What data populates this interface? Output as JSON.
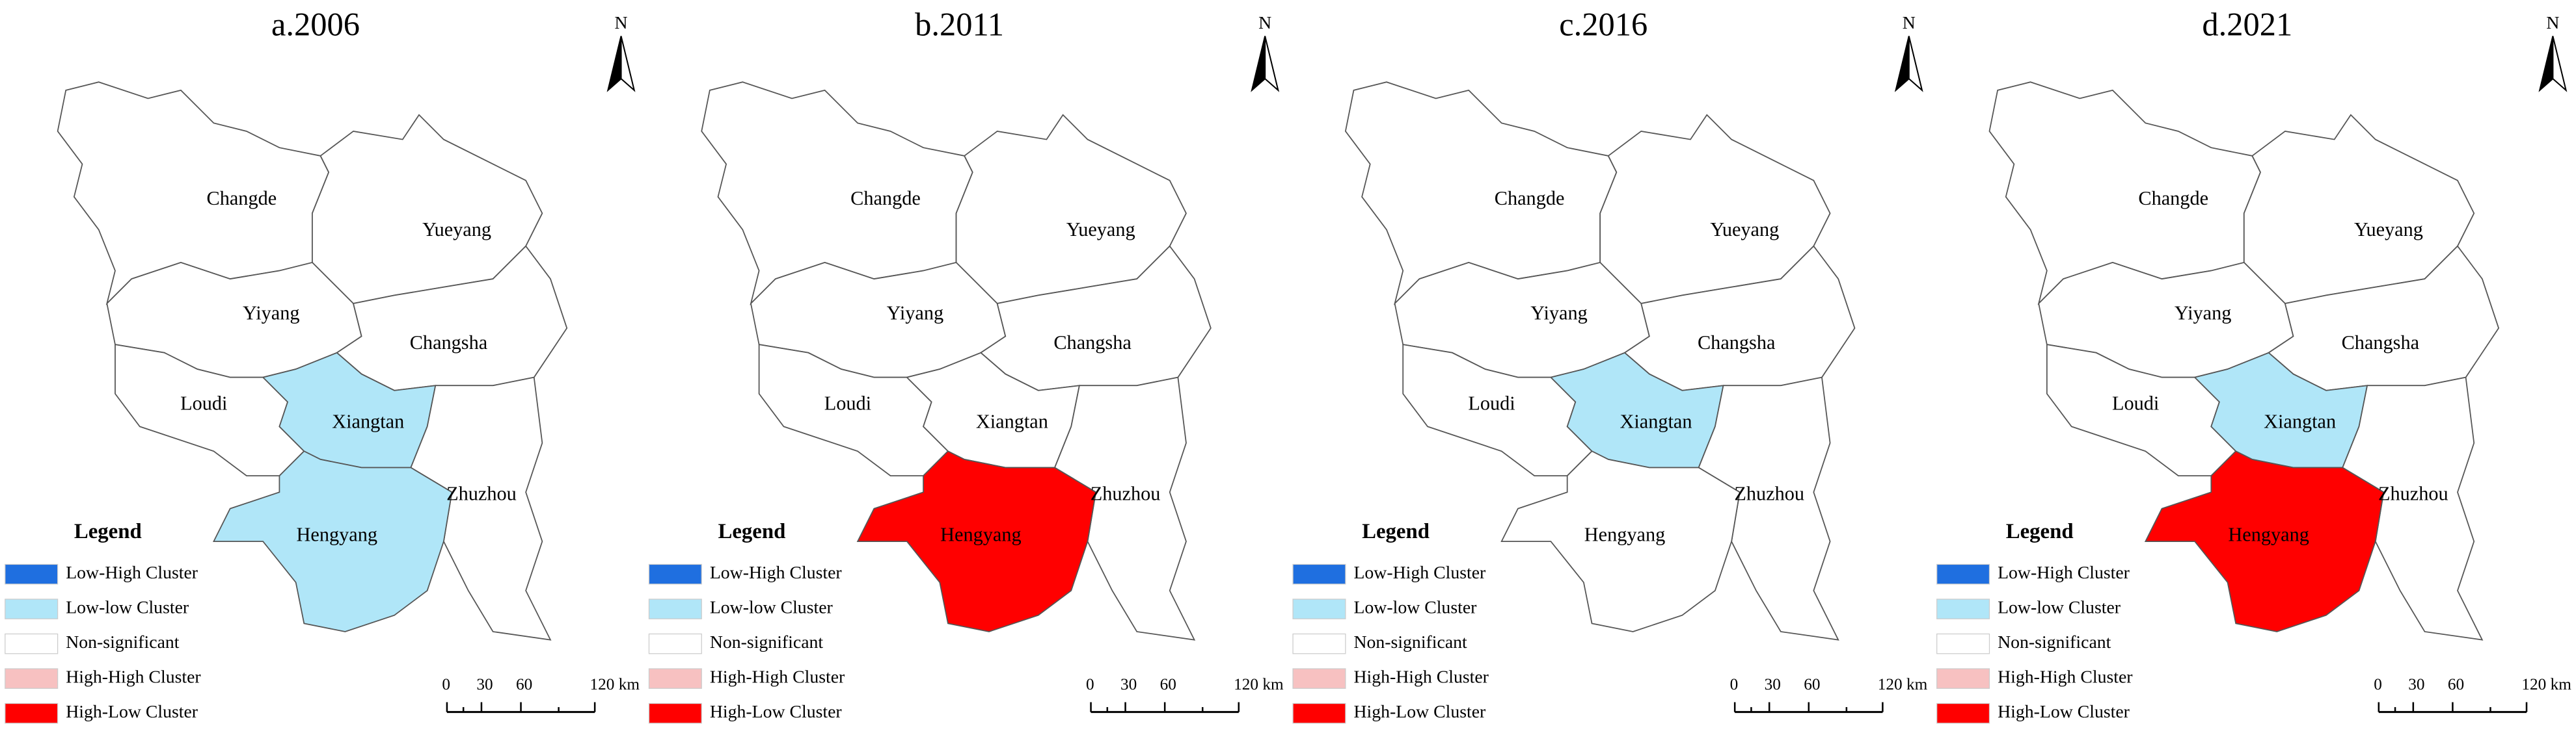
{
  "north": "N",
  "legend": {
    "title": "Legend",
    "items": [
      {
        "label": "Low-High Cluster",
        "color": "#1f6fe0"
      },
      {
        "label": "Low-low Cluster",
        "color": "#b0e6f8"
      },
      {
        "label": "Non-significant",
        "color": "#ffffff"
      },
      {
        "label": "High-High Cluster",
        "color": "#f7c1c1"
      },
      {
        "label": "High-Low Cluster",
        "color": "#ff0000"
      }
    ]
  },
  "scale_bar": [
    "0",
    "30",
    "60",
    "120 km"
  ],
  "panels": [
    {
      "title": "a.2006",
      "regions": [
        {
          "name": "Changde",
          "color": "#ffffff"
        },
        {
          "name": "Yueyang",
          "color": "#ffffff"
        },
        {
          "name": "Yiyang",
          "color": "#ffffff"
        },
        {
          "name": "Changsha",
          "color": "#ffffff"
        },
        {
          "name": "Loudi",
          "color": "#ffffff"
        },
        {
          "name": "Xiangtan",
          "color": "#b0e6f8"
        },
        {
          "name": "Zhuzhou",
          "color": "#ffffff"
        },
        {
          "name": "Hengyang",
          "color": "#b0e6f8"
        }
      ]
    },
    {
      "title": "b.2011",
      "regions": [
        {
          "name": "Changde",
          "color": "#ffffff"
        },
        {
          "name": "Yueyang",
          "color": "#ffffff"
        },
        {
          "name": "Yiyang",
          "color": "#ffffff"
        },
        {
          "name": "Changsha",
          "color": "#ffffff"
        },
        {
          "name": "Loudi",
          "color": "#ffffff"
        },
        {
          "name": "Xiangtan",
          "color": "#ffffff"
        },
        {
          "name": "Zhuzhou",
          "color": "#ffffff"
        },
        {
          "name": "Hengyang",
          "color": "#ff0000"
        }
      ]
    },
    {
      "title": "c.2016",
      "regions": [
        {
          "name": "Changde",
          "color": "#ffffff"
        },
        {
          "name": "Yueyang",
          "color": "#ffffff"
        },
        {
          "name": "Yiyang",
          "color": "#ffffff"
        },
        {
          "name": "Changsha",
          "color": "#ffffff"
        },
        {
          "name": "Loudi",
          "color": "#ffffff"
        },
        {
          "name": "Xiangtan",
          "color": "#b0e6f8"
        },
        {
          "name": "Zhuzhou",
          "color": "#ffffff"
        },
        {
          "name": "Hengyang",
          "color": "#ffffff"
        }
      ]
    },
    {
      "title": "d.2021",
      "regions": [
        {
          "name": "Changde",
          "color": "#ffffff"
        },
        {
          "name": "Yueyang",
          "color": "#ffffff"
        },
        {
          "name": "Yiyang",
          "color": "#ffffff"
        },
        {
          "name": "Changsha",
          "color": "#ffffff"
        },
        {
          "name": "Loudi",
          "color": "#ffffff"
        },
        {
          "name": "Xiangtan",
          "color": "#b0e6f8"
        },
        {
          "name": "Zhuzhou",
          "color": "#ffffff"
        },
        {
          "name": "Hengyang",
          "color": "#ff0000"
        }
      ]
    }
  ]
}
